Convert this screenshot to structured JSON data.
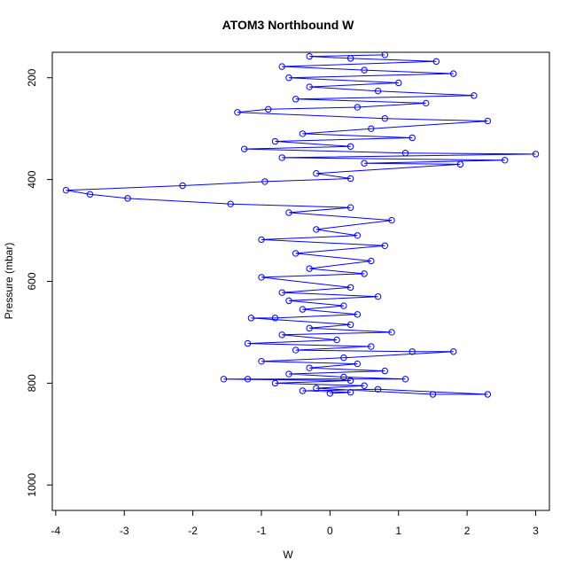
{
  "chart_data": {
    "type": "scatter",
    "title": "ATOM3 Northbound W",
    "xlabel": "W",
    "ylabel": "Pressure (mbar)",
    "xlim": [
      -4.05,
      3.2
    ],
    "ylim": [
      1050,
      150
    ],
    "y_reversed": true,
    "x_ticks": [
      -4,
      -3,
      -2,
      -1,
      0,
      1,
      2,
      3
    ],
    "y_ticks": [
      200,
      400,
      600,
      800,
      1000
    ],
    "marker": "open-circle",
    "connected": true,
    "grid": false,
    "series": [
      {
        "color": "#0000ff",
        "points": [
          [
            0.0,
            820
          ],
          [
            0.3,
            818
          ],
          [
            -0.4,
            815
          ],
          [
            0.7,
            812
          ],
          [
            2.3,
            822
          ],
          [
            1.5,
            822
          ],
          [
            -0.2,
            810
          ],
          [
            0.5,
            805
          ],
          [
            -0.8,
            800
          ],
          [
            0.3,
            795
          ],
          [
            -1.55,
            792
          ],
          [
            -1.2,
            792
          ],
          [
            1.1,
            792
          ],
          [
            0.2,
            788
          ],
          [
            -0.6,
            782
          ],
          [
            0.8,
            776
          ],
          [
            -0.3,
            770
          ],
          [
            0.4,
            762
          ],
          [
            -1.0,
            757
          ],
          [
            0.2,
            750
          ],
          [
            1.8,
            738
          ],
          [
            1.2,
            738
          ],
          [
            -0.5,
            735
          ],
          [
            0.6,
            728
          ],
          [
            -1.2,
            722
          ],
          [
            0.1,
            715
          ],
          [
            -0.7,
            705
          ],
          [
            0.9,
            700
          ],
          [
            -0.3,
            692
          ],
          [
            0.3,
            685
          ],
          [
            -1.15,
            672
          ],
          [
            -0.8,
            672
          ],
          [
            0.4,
            665
          ],
          [
            -0.4,
            655
          ],
          [
            0.2,
            648
          ],
          [
            -0.6,
            638
          ],
          [
            0.7,
            630
          ],
          [
            -0.7,
            622
          ],
          [
            0.3,
            612
          ],
          [
            -1.0,
            592
          ],
          [
            0.5,
            585
          ],
          [
            -0.3,
            575
          ],
          [
            0.6,
            560
          ],
          [
            -0.5,
            545
          ],
          [
            0.8,
            530
          ],
          [
            -1.0,
            518
          ],
          [
            0.4,
            510
          ],
          [
            -0.2,
            498
          ],
          [
            0.9,
            480
          ],
          [
            -0.6,
            465
          ],
          [
            0.3,
            455
          ],
          [
            -1.45,
            448
          ],
          [
            -2.95,
            437
          ],
          [
            -3.5,
            429
          ],
          [
            -3.85,
            421
          ],
          [
            -2.15,
            412
          ],
          [
            -0.95,
            404
          ],
          [
            0.3,
            398
          ],
          [
            -0.2,
            388
          ],
          [
            1.9,
            370
          ],
          [
            0.5,
            368
          ],
          [
            2.55,
            362
          ],
          [
            -0.7,
            357
          ],
          [
            3.0,
            350
          ],
          [
            1.1,
            348
          ],
          [
            -1.25,
            340
          ],
          [
            0.3,
            335
          ],
          [
            -0.8,
            325
          ],
          [
            1.2,
            318
          ],
          [
            -0.4,
            310
          ],
          [
            0.6,
            300
          ],
          [
            2.3,
            285
          ],
          [
            0.8,
            280
          ],
          [
            -1.35,
            268
          ],
          [
            -0.9,
            262
          ],
          [
            0.4,
            258
          ],
          [
            1.4,
            250
          ],
          [
            -0.5,
            242
          ],
          [
            2.1,
            235
          ],
          [
            0.7,
            226
          ],
          [
            -0.3,
            218
          ],
          [
            1.0,
            210
          ],
          [
            -0.6,
            200
          ],
          [
            1.8,
            192
          ],
          [
            0.5,
            185
          ],
          [
            -0.7,
            178
          ],
          [
            1.55,
            168
          ],
          [
            0.3,
            162
          ],
          [
            -0.3,
            158
          ],
          [
            0.8,
            155
          ]
        ]
      }
    ]
  }
}
